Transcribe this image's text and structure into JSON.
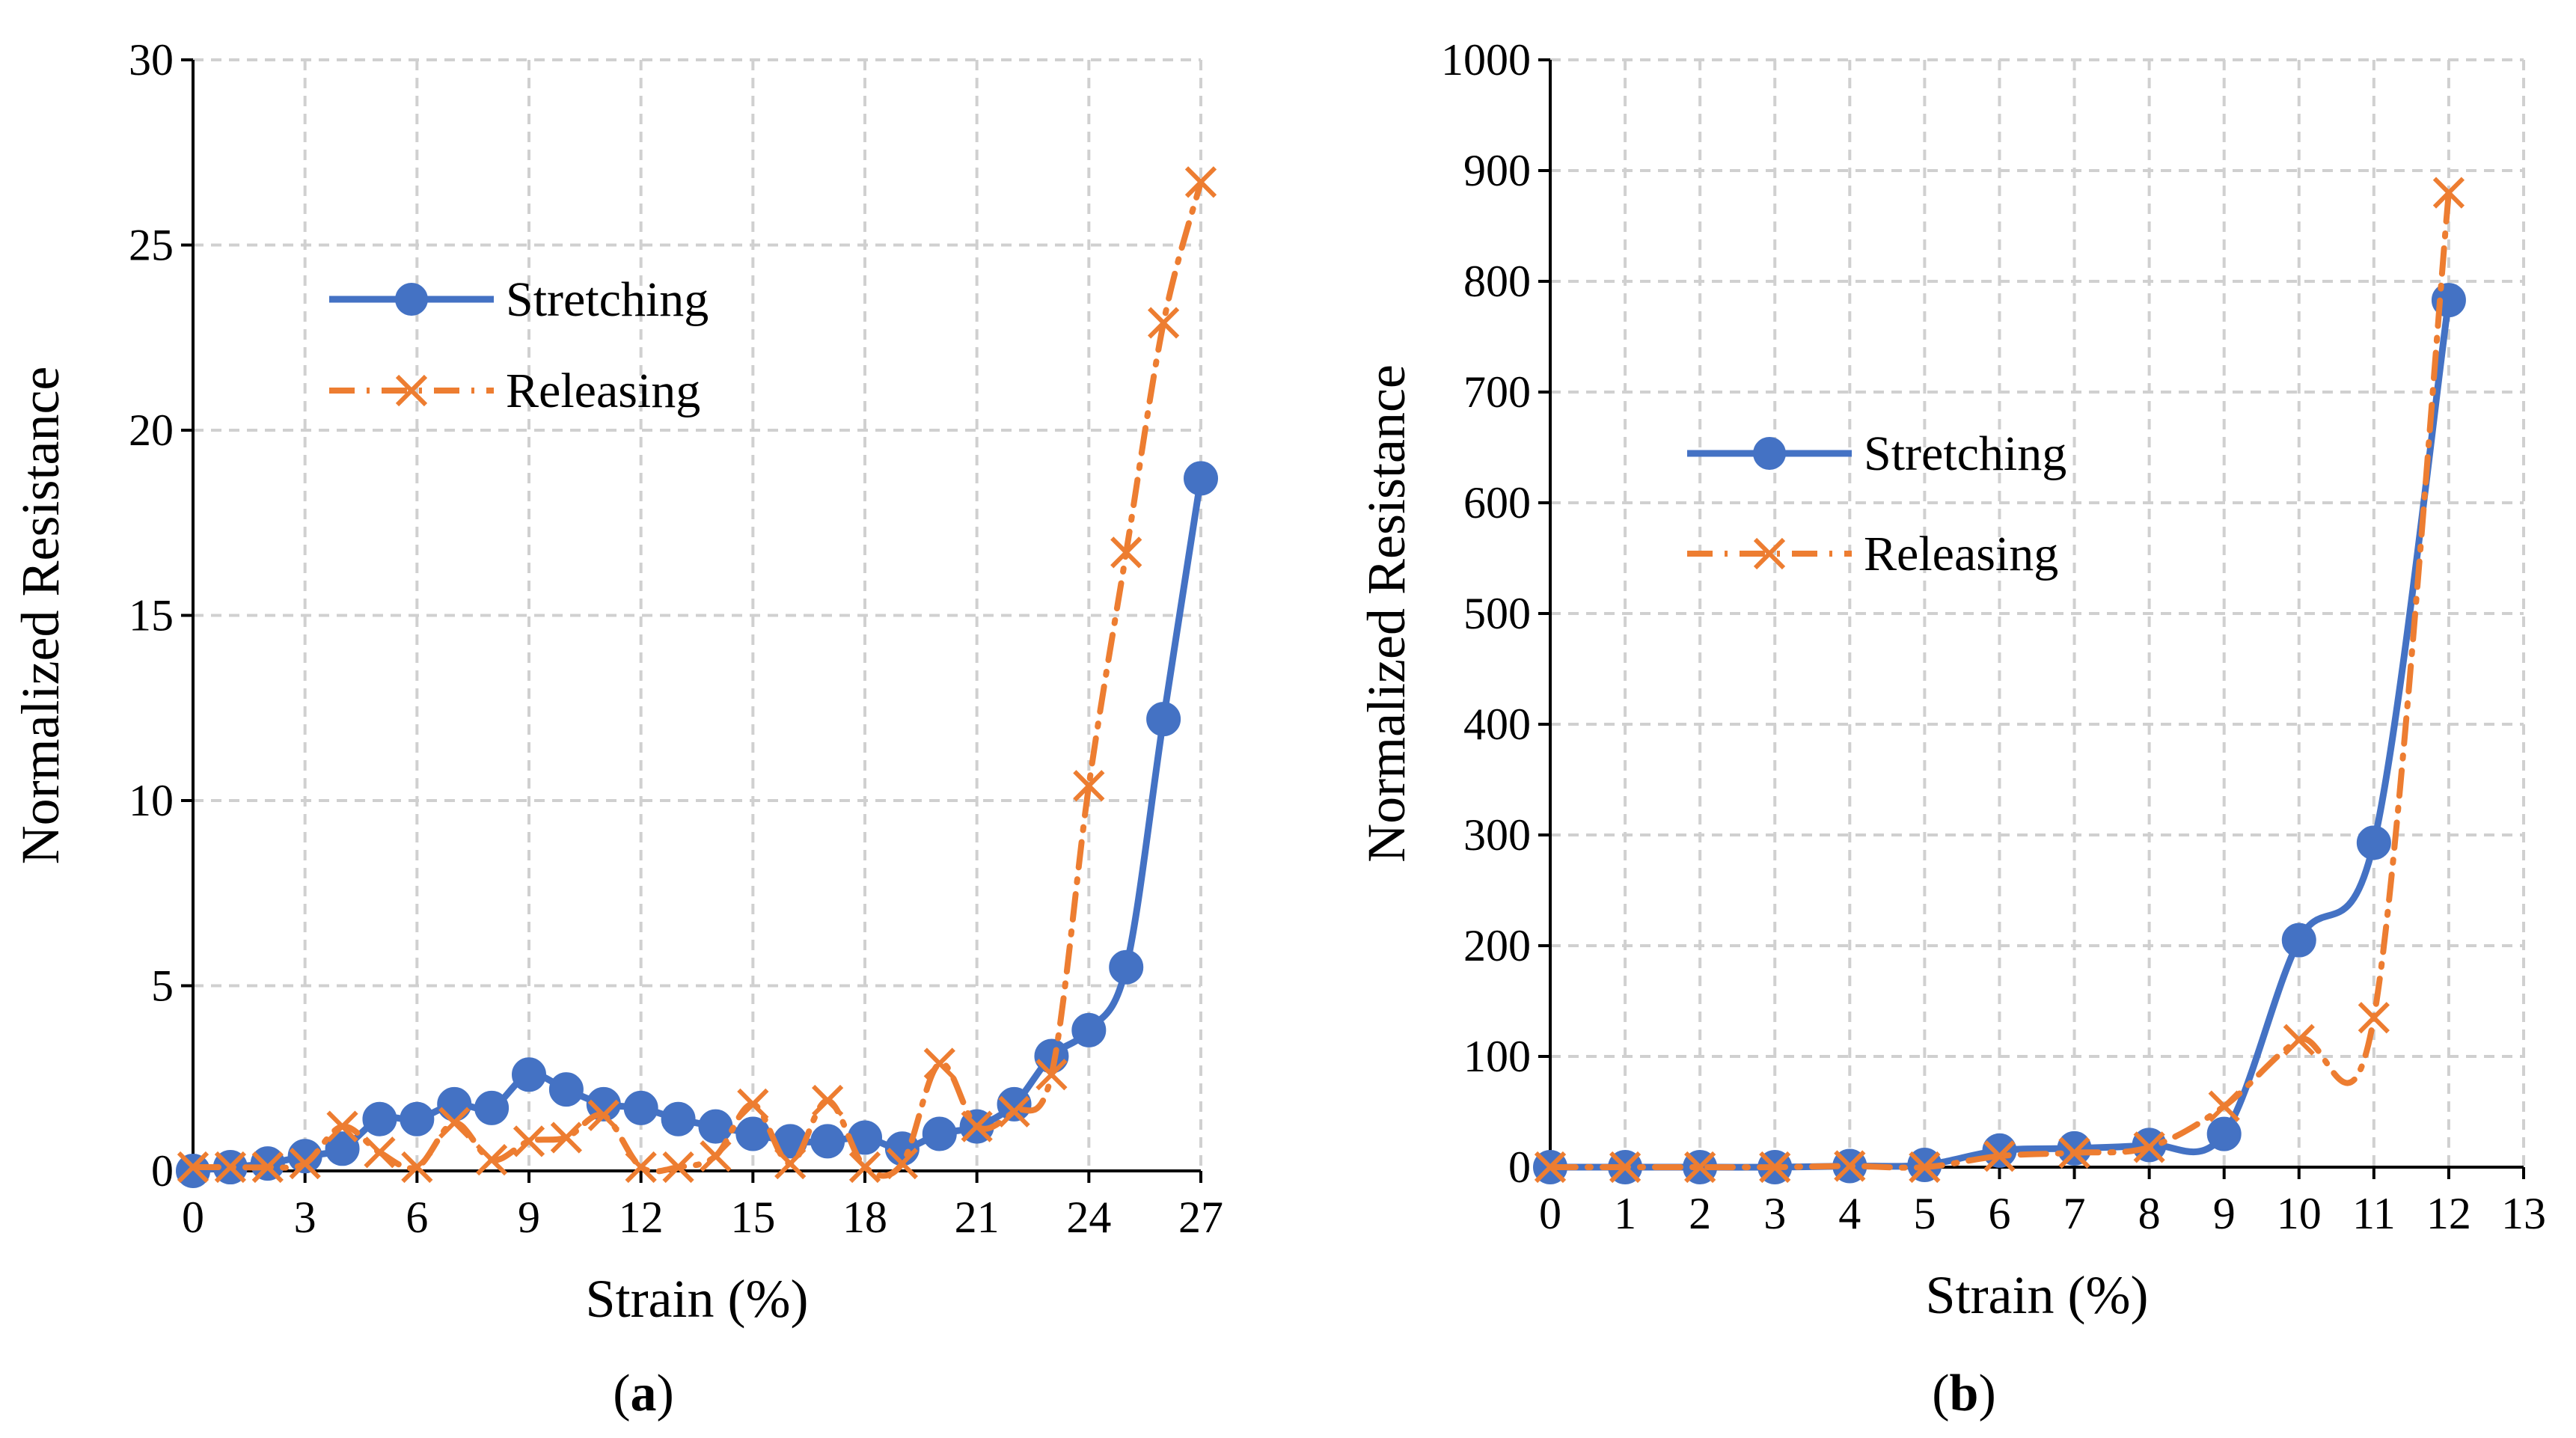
{
  "colors": {
    "stretching": "#4472C4",
    "releasing": "#ED7D31",
    "grid": "#D0D0D0",
    "axis": "#000000"
  },
  "chart_data": [
    {
      "id": "a",
      "type": "line",
      "caption_open": "(",
      "caption_letter": "a",
      "caption_close": ")",
      "xlabel": "Strain (%)",
      "ylabel": "Normalized Resistance",
      "xlim": [
        0,
        27
      ],
      "ylim": [
        0,
        30
      ],
      "xticks": [
        0,
        3,
        6,
        9,
        12,
        15,
        18,
        21,
        24,
        27
      ],
      "yticks": [
        0,
        5,
        10,
        15,
        20,
        25,
        30
      ],
      "grid_x": [
        0,
        3,
        6,
        9,
        12,
        15,
        18,
        21,
        24,
        27
      ],
      "legend_position": "upper-left",
      "series": [
        {
          "name": "Stretching",
          "marker": "circle",
          "line": "solid",
          "x": [
            0,
            1,
            2,
            3,
            4,
            5,
            6,
            7,
            8,
            9,
            10,
            11,
            12,
            13,
            14,
            15,
            16,
            17,
            18,
            19,
            20,
            21,
            22,
            23,
            24,
            25,
            26,
            27
          ],
          "values": [
            0.0,
            0.1,
            0.2,
            0.4,
            0.6,
            1.4,
            1.4,
            1.8,
            1.7,
            2.6,
            2.2,
            1.8,
            1.7,
            1.4,
            1.2,
            1.0,
            0.8,
            0.8,
            0.9,
            0.6,
            1.0,
            1.2,
            1.8,
            3.1,
            3.8,
            5.5,
            12.2,
            18.7
          ]
        },
        {
          "name": "Releasing",
          "marker": "x",
          "line": "dashdot",
          "x": [
            0,
            1,
            2,
            3,
            4,
            5,
            6,
            7,
            8,
            9,
            10,
            11,
            12,
            13,
            14,
            15,
            16,
            17,
            18,
            19,
            20,
            21,
            22,
            23,
            24,
            25,
            26,
            27
          ],
          "values": [
            0.1,
            0.1,
            0.1,
            0.2,
            1.2,
            0.5,
            0.1,
            1.3,
            0.3,
            0.8,
            0.9,
            1.5,
            0.1,
            0.1,
            0.4,
            1.8,
            0.2,
            1.9,
            0.1,
            0.2,
            2.9,
            1.2,
            1.6,
            2.6,
            10.4,
            16.7,
            22.9,
            26.7
          ]
        }
      ]
    },
    {
      "id": "b",
      "type": "line",
      "caption_open": "(",
      "caption_letter": "b",
      "caption_close": ")",
      "xlabel": "Strain (%)",
      "ylabel": "Normalized Resistance",
      "xlim": [
        0,
        13
      ],
      "ylim": [
        0,
        1000
      ],
      "xticks": [
        0,
        1,
        2,
        3,
        4,
        5,
        6,
        7,
        8,
        9,
        10,
        11,
        12,
        13
      ],
      "yticks": [
        0,
        100,
        200,
        300,
        400,
        500,
        600,
        700,
        800,
        900,
        1000
      ],
      "grid_x": [
        0,
        1,
        2,
        3,
        4,
        5,
        6,
        7,
        8,
        9,
        10,
        11,
        12,
        13
      ],
      "legend_position": "upper-left",
      "series": [
        {
          "name": "Stretching",
          "marker": "circle",
          "line": "solid",
          "x": [
            0,
            1,
            2,
            3,
            4,
            5,
            6,
            7,
            8,
            9,
            10,
            11,
            12
          ],
          "values": [
            0,
            0,
            0,
            0,
            1,
            2,
            15,
            17,
            20,
            30,
            205,
            293,
            783
          ]
        },
        {
          "name": "Releasing",
          "marker": "x",
          "line": "dashdot",
          "x": [
            0,
            1,
            2,
            3,
            4,
            5,
            6,
            7,
            8,
            9,
            10,
            11,
            12
          ],
          "values": [
            0,
            0,
            0,
            0,
            1,
            0,
            10,
            13,
            18,
            55,
            115,
            135,
            880
          ]
        }
      ]
    }
  ]
}
